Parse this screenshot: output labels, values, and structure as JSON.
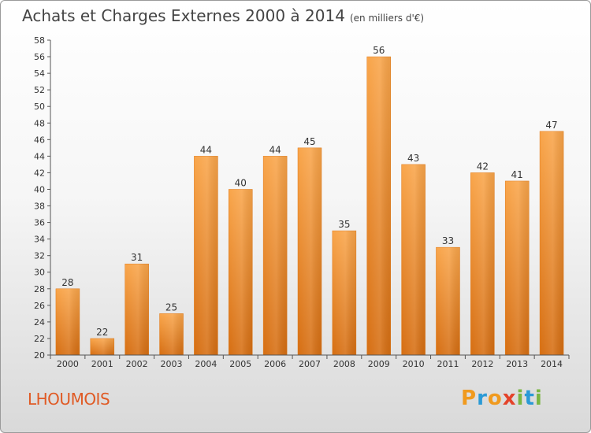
{
  "chart_data": {
    "type": "bar",
    "title": "Achats et Charges Externes 2000 à 2014",
    "subtitle": "(en milliers d'€)",
    "categories": [
      "2000",
      "2001",
      "2002",
      "2003",
      "2004",
      "2005",
      "2006",
      "2007",
      "2008",
      "2009",
      "2010",
      "2011",
      "2012",
      "2013",
      "2014"
    ],
    "values": [
      28,
      22,
      31,
      25,
      44,
      40,
      44,
      45,
      35,
      56,
      43,
      33,
      42,
      41,
      47
    ],
    "ylim": [
      20,
      58
    ],
    "ytick_step": 2,
    "grid": false,
    "bar_color": "#f08a24"
  },
  "footer": {
    "commune": "LHOUMOIS",
    "logo": "Proxiti"
  }
}
